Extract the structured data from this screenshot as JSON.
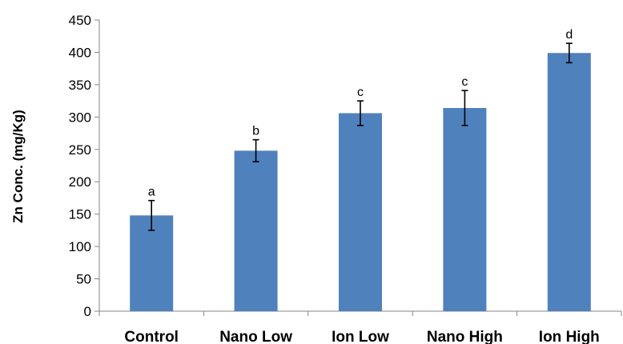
{
  "chart_data": {
    "type": "bar",
    "categories": [
      "Control",
      "Nano Low",
      "Ion Low",
      "Nano High",
      "Ion High"
    ],
    "values": [
      148,
      248,
      306,
      314,
      399
    ],
    "error": [
      23,
      17,
      19,
      27,
      15
    ],
    "significance_labels": [
      "a",
      "b",
      "c",
      "c",
      "d"
    ],
    "title": "",
    "xlabel": "",
    "ylabel": "Zn Conc. (mg/Kg)",
    "ylim": [
      0,
      450
    ],
    "yticks": [
      0,
      50,
      100,
      150,
      200,
      250,
      300,
      350,
      400,
      450
    ],
    "grid": false,
    "legend": "none",
    "bar_color": "#4F81BD"
  }
}
